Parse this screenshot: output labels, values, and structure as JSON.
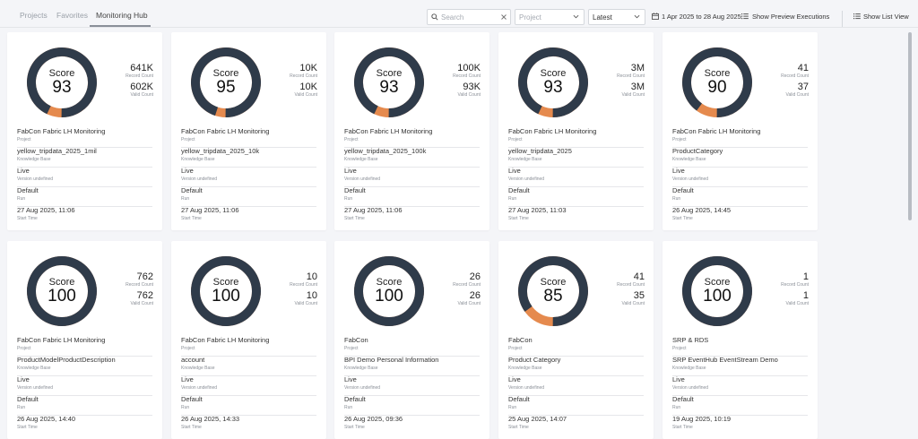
{
  "tabs": [
    {
      "label": "Projects",
      "active": false
    },
    {
      "label": "Favorites",
      "active": false
    },
    {
      "label": "Monitoring Hub",
      "active": true
    }
  ],
  "toolbar": {
    "search_placeholder": "Search",
    "project_placeholder": "Project",
    "sort_value": "Latest",
    "date_range": "1 Apr 2025 to 28 Aug 2025",
    "preview_label": "Show Preview Executions",
    "list_view_label": "Show List View"
  },
  "labels": {
    "score": "Score",
    "record_count": "Record Count",
    "valid_count": "Valid Count",
    "project": "Project",
    "knowledge_base": "Knowledge Base",
    "version": "Version undefined",
    "run": "Run",
    "start_time": "Start Time"
  },
  "colors": {
    "ring_main": "#2f3b4a",
    "ring_accent": "#e58a4e"
  },
  "cards": [
    {
      "score": "93",
      "record_count": "641K",
      "valid_count": "602K",
      "project": "FabCon Fabric LH Monitoring",
      "knowledge_base": "yellow_tripdata_2025_1mil",
      "version": "Live",
      "run": "Default",
      "start_time": "27 Aug 2025, 11:06"
    },
    {
      "score": "95",
      "record_count": "10K",
      "valid_count": "10K",
      "project": "FabCon Fabric LH Monitoring",
      "knowledge_base": "yellow_tripdata_2025_10k",
      "version": "Live",
      "run": "Default",
      "start_time": "27 Aug 2025, 11:06"
    },
    {
      "score": "93",
      "record_count": "100K",
      "valid_count": "93K",
      "project": "FabCon Fabric LH Monitoring",
      "knowledge_base": "yellow_tripdata_2025_100k",
      "version": "Live",
      "run": "Default",
      "start_time": "27 Aug 2025, 11:06"
    },
    {
      "score": "93",
      "record_count": "3M",
      "valid_count": "3M",
      "project": "FabCon Fabric LH Monitoring",
      "knowledge_base": "yellow_tripdata_2025",
      "version": "Live",
      "run": "Default",
      "start_time": "27 Aug 2025, 11:03"
    },
    {
      "score": "90",
      "record_count": "41",
      "valid_count": "37",
      "project": "FabCon Fabric LH Monitoring",
      "knowledge_base": "ProductCategory",
      "version": "Live",
      "run": "Default",
      "start_time": "26 Aug 2025, 14:45"
    },
    {
      "score": "100",
      "record_count": "762",
      "valid_count": "762",
      "project": "FabCon Fabric LH Monitoring",
      "knowledge_base": "ProductModelProductDescription",
      "version": "Live",
      "run": "Default",
      "start_time": "26 Aug 2025, 14:40"
    },
    {
      "score": "100",
      "record_count": "10",
      "valid_count": "10",
      "project": "FabCon Fabric LH Monitoring",
      "knowledge_base": "account",
      "version": "Live",
      "run": "Default",
      "start_time": "26 Aug 2025, 14:33"
    },
    {
      "score": "100",
      "record_count": "26",
      "valid_count": "26",
      "project": "FabCon",
      "knowledge_base": "BPI Demo Personal Information",
      "version": "Live",
      "run": "Default",
      "start_time": "26 Aug 2025, 09:36"
    },
    {
      "score": "85",
      "record_count": "41",
      "valid_count": "35",
      "project": "FabCon",
      "knowledge_base": "Product Category",
      "version": "Live",
      "run": "Default",
      "start_time": "25 Aug 2025, 14:07"
    },
    {
      "score": "100",
      "record_count": "1",
      "valid_count": "1",
      "project": "SRP & RDS",
      "knowledge_base": "SRP EventHub EventStream Demo",
      "version": "Live",
      "run": "Default",
      "start_time": "19 Aug 2025, 10:19"
    }
  ]
}
